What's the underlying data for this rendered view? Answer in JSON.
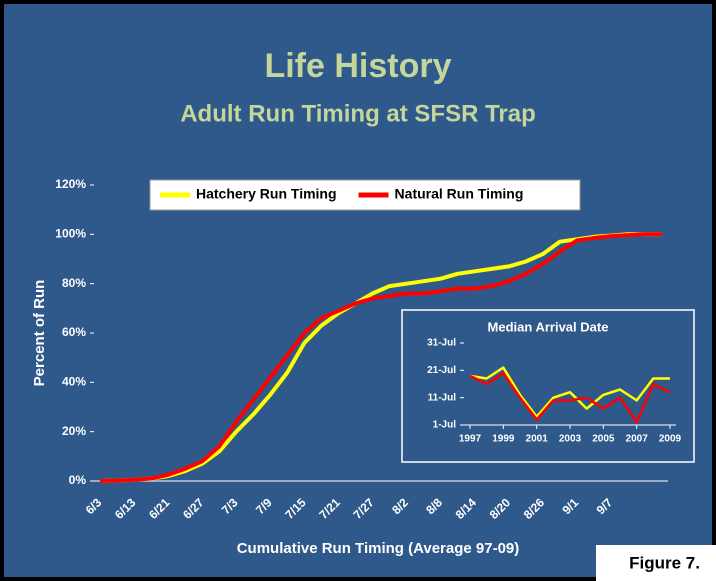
{
  "chart_data": [
    {
      "type": "line",
      "title": "Life History",
      "subtitle": "Adult Run Timing at SFSR Trap",
      "x_label": "Cumulative Run Timing (Average 97-09)",
      "y_label": "Percent of Run",
      "annotation": "Figure 7.",
      "categories": [
        "6/3",
        null,
        "6/13",
        null,
        "6/21",
        null,
        "6/27",
        null,
        "7/3",
        null,
        "7/9",
        null,
        "7/15",
        null,
        "7/21",
        null,
        "7/27",
        null,
        "8/2",
        null,
        "8/8",
        null,
        "8/14",
        null,
        "8/20",
        null,
        "8/26",
        null,
        "9/1",
        null,
        "9/7",
        null,
        null,
        null
      ],
      "series": [
        {
          "name": "Hatchery Run Timing",
          "color": "#ffff00",
          "values": [
            0,
            0.2,
            0.5,
            1,
            2,
            4,
            7,
            12,
            20,
            27,
            35,
            44,
            56,
            63,
            68,
            72,
            76,
            79,
            80,
            81,
            82,
            84,
            85,
            86,
            87,
            89,
            92,
            97,
            98,
            99,
            99.5,
            100,
            100,
            100
          ]
        },
        {
          "name": "Natural Run Timing",
          "color": "#ff0000",
          "values": [
            0,
            0.2,
            0.5,
            1,
            2.5,
            5,
            8,
            14,
            24,
            33,
            42,
            51,
            60,
            66,
            69,
            72,
            74,
            75,
            76,
            76,
            77,
            78,
            78,
            79,
            81,
            84,
            88,
            93,
            97.5,
            98.5,
            99.3,
            99.7,
            100,
            100
          ]
        }
      ],
      "ylim": [
        0,
        120
      ],
      "yticks": [
        {
          "value": 0,
          "label": "0%"
        },
        {
          "value": 20,
          "label": "20%"
        },
        {
          "value": 40,
          "label": "40%"
        },
        {
          "value": 60,
          "label": "60%"
        },
        {
          "value": 80,
          "label": "80%"
        },
        {
          "value": 100,
          "label": "100%"
        },
        {
          "value": 120,
          "label": "120%"
        }
      ],
      "legend": "top"
    },
    {
      "type": "line",
      "title": "Median Arrival Date",
      "x": [
        1997,
        1998,
        1999,
        2000,
        2001,
        2002,
        2003,
        2004,
        2005,
        2006,
        2007,
        2008,
        2009
      ],
      "xlim": [
        1997,
        2009
      ],
      "xticks": [
        1997,
        1999,
        2001,
        2003,
        2005,
        2007,
        2009
      ],
      "series": [
        {
          "name": "Hatchery",
          "color": "#ffff00",
          "values": [
            19,
            18,
            22,
            12,
            4,
            11,
            13,
            7,
            12,
            14,
            10,
            18,
            18
          ]
        },
        {
          "name": "Natural",
          "color": "#ff0000",
          "values": [
            19,
            16,
            20,
            11,
            3,
            10,
            10,
            11,
            7,
            11,
            2,
            16,
            13
          ]
        }
      ],
      "ylim": [
        1,
        31
      ],
      "yticks": [
        {
          "value": 1,
          "label": "1-Jul"
        },
        {
          "value": 11,
          "label": "11-Jul"
        },
        {
          "value": 21,
          "label": "21-Jul"
        },
        {
          "value": 31,
          "label": "31-Jul"
        }
      ]
    }
  ]
}
